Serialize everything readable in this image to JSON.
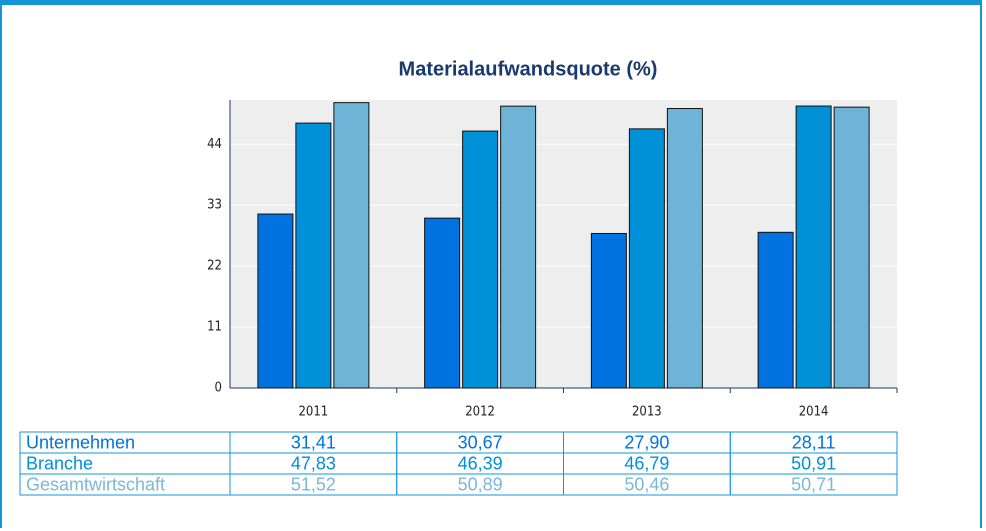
{
  "chart_data": {
    "type": "bar",
    "title": "Materialaufwandsquote (%)",
    "categories": [
      "2011",
      "2012",
      "2013",
      "2014"
    ],
    "series": [
      {
        "name": "Unternehmen",
        "color": "#0073e0",
        "values": [
          31.41,
          30.67,
          27.9,
          28.11
        ],
        "value_labels": [
          "31,41",
          "30,67",
          "27,90",
          "28,11"
        ]
      },
      {
        "name": "Branche",
        "color": "#0090d8",
        "values": [
          47.83,
          46.39,
          46.79,
          50.91
        ],
        "value_labels": [
          "47,83",
          "46,39",
          "46,79",
          "50,91"
        ]
      },
      {
        "name": "Gesamtwirtschaft",
        "color": "#6fb4d6",
        "values": [
          51.52,
          50.89,
          50.46,
          50.71
        ],
        "value_labels": [
          "51,52",
          "50,89",
          "50,46",
          "50,71"
        ]
      }
    ],
    "ylim": [
      0,
      52
    ],
    "yticks": [
      0,
      11,
      22,
      33,
      44
    ],
    "grid": true
  }
}
